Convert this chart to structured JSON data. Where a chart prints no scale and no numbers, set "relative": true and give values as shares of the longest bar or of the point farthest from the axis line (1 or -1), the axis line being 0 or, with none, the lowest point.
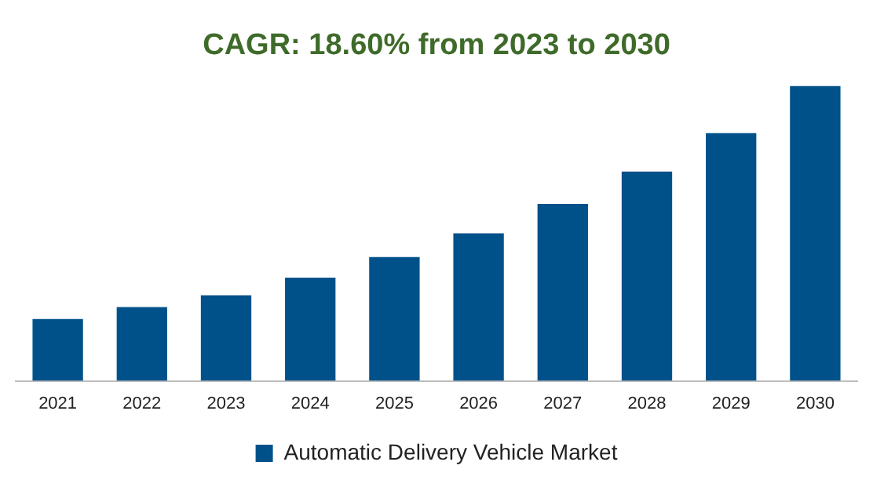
{
  "chart_data": {
    "type": "bar",
    "title": "CAGR: 18.60% from 2023 to 2030",
    "relative": true,
    "categories": [
      "2021",
      "2022",
      "2023",
      "2024",
      "2025",
      "2026",
      "2027",
      "2028",
      "2029",
      "2030"
    ],
    "series": [
      {
        "name": "Automatic Delivery Vehicle Market",
        "color": "#00518a",
        "values": [
          0.21,
          0.25,
          0.29,
          0.35,
          0.42,
          0.5,
          0.6,
          0.71,
          0.84,
          1
        ]
      }
    ],
    "legend": "bottom",
    "grid": false
  }
}
